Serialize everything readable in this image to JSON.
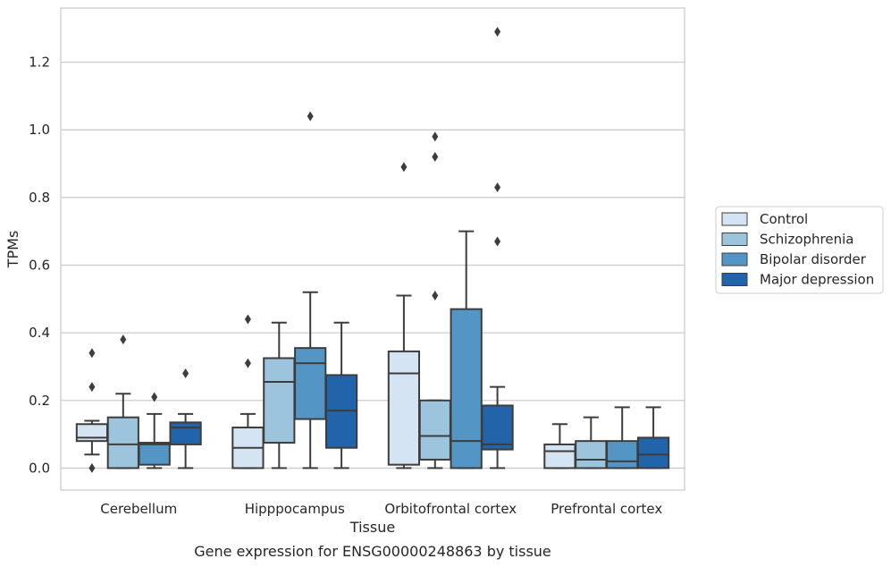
{
  "chart_data": {
    "type": "box",
    "title": "",
    "caption": "Gene expression for ENSG00000248863 by tissue",
    "xlabel": "Tissue",
    "ylabel": "TPMs",
    "ylim": [
      -0.065,
      1.36
    ],
    "yticks": [
      0.0,
      0.2,
      0.4,
      0.6,
      0.8,
      1.0,
      1.2
    ],
    "ytick_labels": [
      "0.0",
      "0.2",
      "0.4",
      "0.6",
      "0.8",
      "1.0",
      "1.2"
    ],
    "grid": "horizontal",
    "legend_position": "right",
    "categories": [
      "Cerebellum",
      "Hipppocampus",
      "Orbitofrontal cortex",
      "Prefrontal cortex"
    ],
    "series": [
      {
        "name": "Control",
        "color": "#d4e4f3",
        "boxes": [
          {
            "whisker_low": 0.04,
            "q1": 0.08,
            "median": 0.09,
            "q3": 0.13,
            "whisker_high": 0.14,
            "outliers": [
              0.34,
              0.24,
              0.0
            ]
          },
          {
            "whisker_low": 0.0,
            "q1": 0.0,
            "median": 0.06,
            "q3": 0.12,
            "whisker_high": 0.16,
            "outliers": [
              0.44,
              0.31
            ]
          },
          {
            "whisker_low": 0.0,
            "q1": 0.01,
            "median": 0.28,
            "q3": 0.345,
            "whisker_high": 0.51,
            "outliers": [
              0.89
            ]
          },
          {
            "whisker_low": 0.0,
            "q1": 0.0,
            "median": 0.05,
            "q3": 0.07,
            "whisker_high": 0.13,
            "outliers": []
          }
        ]
      },
      {
        "name": "Schizophrenia",
        "color": "#9dc4dd",
        "boxes": [
          {
            "whisker_low": 0.0,
            "q1": 0.0,
            "median": 0.07,
            "q3": 0.15,
            "whisker_high": 0.22,
            "outliers": [
              0.38
            ]
          },
          {
            "whisker_low": 0.0,
            "q1": 0.075,
            "median": 0.255,
            "q3": 0.325,
            "whisker_high": 0.43,
            "outliers": []
          },
          {
            "whisker_low": 0.0,
            "q1": 0.025,
            "median": 0.095,
            "q3": 0.2,
            "whisker_high": 0.2,
            "outliers": [
              0.98,
              0.92,
              0.51
            ]
          },
          {
            "whisker_low": 0.0,
            "q1": 0.0,
            "median": 0.025,
            "q3": 0.08,
            "whisker_high": 0.15,
            "outliers": []
          }
        ]
      },
      {
        "name": "Bipolar disorder",
        "color": "#5396c6",
        "boxes": [
          {
            "whisker_low": 0.0,
            "q1": 0.01,
            "median": 0.07,
            "q3": 0.075,
            "whisker_high": 0.16,
            "outliers": [
              0.21
            ]
          },
          {
            "whisker_low": 0.0,
            "q1": 0.145,
            "median": 0.31,
            "q3": 0.355,
            "whisker_high": 0.52,
            "outliers": [
              1.04
            ]
          },
          {
            "whisker_low": 0.0,
            "q1": 0.0,
            "median": 0.08,
            "q3": 0.47,
            "whisker_high": 0.7,
            "outliers": []
          },
          {
            "whisker_low": 0.0,
            "q1": 0.0,
            "median": 0.02,
            "q3": 0.08,
            "whisker_high": 0.18,
            "outliers": []
          }
        ]
      },
      {
        "name": "Major depression",
        "color": "#2264aa",
        "boxes": [
          {
            "whisker_low": 0.0,
            "q1": 0.07,
            "median": 0.12,
            "q3": 0.135,
            "whisker_high": 0.16,
            "outliers": [
              0.28
            ]
          },
          {
            "whisker_low": 0.0,
            "q1": 0.06,
            "median": 0.17,
            "q3": 0.275,
            "whisker_high": 0.43,
            "outliers": []
          },
          {
            "whisker_low": 0.0,
            "q1": 0.055,
            "median": 0.07,
            "q3": 0.185,
            "whisker_high": 0.24,
            "outliers": [
              1.29,
              0.83,
              0.67
            ]
          },
          {
            "whisker_low": 0.0,
            "q1": 0.0,
            "median": 0.04,
            "q3": 0.09,
            "whisker_high": 0.18,
            "outliers": []
          }
        ]
      }
    ]
  }
}
